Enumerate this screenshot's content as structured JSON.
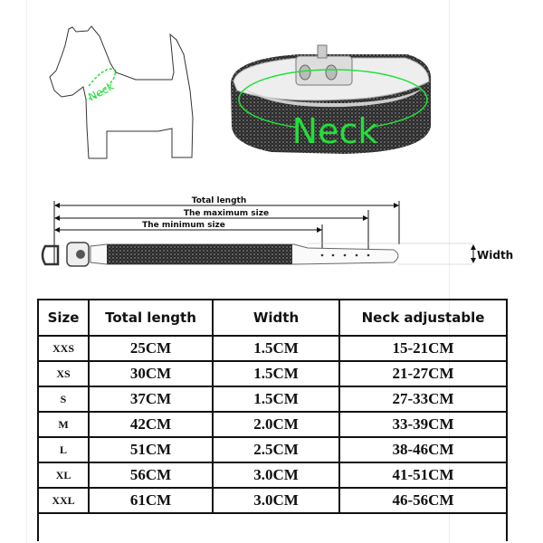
{
  "colors": {
    "accent_green": "#22e03a",
    "line": "#111111"
  },
  "dog_label": "Neck",
  "collar_label": "Neck",
  "diagram": {
    "total_length": "Total length",
    "maximum_size": "The maximum size",
    "minimum_size": "The minimum size",
    "width": "Width"
  },
  "table": {
    "headers": [
      "Size",
      "Total length",
      "Width",
      "Neck adjustable"
    ],
    "rows": [
      [
        "XXS",
        "25CM",
        "1.5CM",
        "15-21CM"
      ],
      [
        "XS",
        "30CM",
        "1.5CM",
        "21-27CM"
      ],
      [
        "S",
        "37CM",
        "1.5CM",
        "27-33CM"
      ],
      [
        "M",
        "42CM",
        "2.0CM",
        "33-39CM"
      ],
      [
        "L",
        "51CM",
        "2.5CM",
        "38-46CM"
      ],
      [
        "XL",
        "56CM",
        "3.0CM",
        "41-51CM"
      ],
      [
        "XXL",
        "61CM",
        "3.0CM",
        "46-56CM"
      ]
    ]
  }
}
